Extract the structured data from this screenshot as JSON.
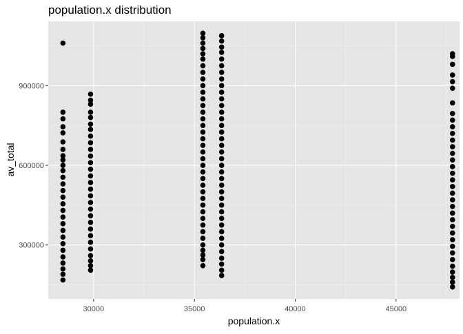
{
  "chart_data": {
    "type": "scatter",
    "title": "population.x  distribution",
    "xlabel": "population.x",
    "ylabel": "av_total",
    "xlim": [
      27750,
      48150
    ],
    "ylim": [
      97000,
      1142000
    ],
    "x_ticks": [
      30000,
      35000,
      40000,
      45000
    ],
    "x_tick_labels": [
      "30000",
      "35000",
      "40000",
      "45000"
    ],
    "y_ticks": [
      300000,
      600000,
      900000
    ],
    "y_tick_labels": [
      "300000",
      "600000",
      "900000"
    ],
    "grid": true,
    "legend": "none",
    "series": [
      {
        "points": [
          [
            28480,
            1060000
          ],
          [
            28480,
            800000
          ],
          [
            28480,
            775000
          ],
          [
            28480,
            745000
          ],
          [
            28480,
            722000
          ],
          [
            28480,
            688000
          ],
          [
            28480,
            660000
          ],
          [
            28480,
            636000
          ],
          [
            28480,
            620000
          ],
          [
            28480,
            600000
          ],
          [
            28480,
            580000
          ],
          [
            28480,
            555000
          ],
          [
            28480,
            530000
          ],
          [
            28480,
            505000
          ],
          [
            28480,
            480000
          ],
          [
            28480,
            455000
          ],
          [
            28480,
            430000
          ],
          [
            28480,
            405000
          ],
          [
            28480,
            380000
          ],
          [
            28480,
            355000
          ],
          [
            28480,
            330000
          ],
          [
            28480,
            305000
          ],
          [
            28480,
            280000
          ],
          [
            28480,
            255000
          ],
          [
            28480,
            232000
          ],
          [
            28480,
            210000
          ],
          [
            28480,
            190000
          ],
          [
            28480,
            168000
          ],
          [
            29850,
            868000
          ],
          [
            29850,
            845000
          ],
          [
            29850,
            830000
          ],
          [
            29850,
            800000
          ],
          [
            29850,
            780000
          ],
          [
            29850,
            755000
          ],
          [
            29850,
            735000
          ],
          [
            29850,
            710000
          ],
          [
            29850,
            685000
          ],
          [
            29850,
            660000
          ],
          [
            29850,
            635000
          ],
          [
            29850,
            610000
          ],
          [
            29850,
            585000
          ],
          [
            29850,
            560000
          ],
          [
            29850,
            535000
          ],
          [
            29850,
            510000
          ],
          [
            29850,
            485000
          ],
          [
            29850,
            460000
          ],
          [
            29850,
            435000
          ],
          [
            29850,
            410000
          ],
          [
            29850,
            385000
          ],
          [
            29850,
            360000
          ],
          [
            29850,
            335000
          ],
          [
            29850,
            310000
          ],
          [
            29850,
            285000
          ],
          [
            29850,
            260000
          ],
          [
            29850,
            240000
          ],
          [
            29850,
            222000
          ],
          [
            29850,
            205000
          ],
          [
            35420,
            1097000
          ],
          [
            35420,
            1080000
          ],
          [
            35420,
            1060000
          ],
          [
            35420,
            1040000
          ],
          [
            35420,
            1020000
          ],
          [
            35420,
            1000000
          ],
          [
            35420,
            975000
          ],
          [
            35420,
            950000
          ],
          [
            35420,
            925000
          ],
          [
            35420,
            900000
          ],
          [
            35420,
            875000
          ],
          [
            35420,
            850000
          ],
          [
            35420,
            825000
          ],
          [
            35420,
            800000
          ],
          [
            35420,
            775000
          ],
          [
            35420,
            750000
          ],
          [
            35420,
            725000
          ],
          [
            35420,
            700000
          ],
          [
            35420,
            675000
          ],
          [
            35420,
            650000
          ],
          [
            35420,
            625000
          ],
          [
            35420,
            600000
          ],
          [
            35420,
            575000
          ],
          [
            35420,
            550000
          ],
          [
            35420,
            525000
          ],
          [
            35420,
            500000
          ],
          [
            35420,
            475000
          ],
          [
            35420,
            450000
          ],
          [
            35420,
            425000
          ],
          [
            35420,
            400000
          ],
          [
            35420,
            375000
          ],
          [
            35420,
            350000
          ],
          [
            35420,
            325000
          ],
          [
            35420,
            300000
          ],
          [
            35420,
            280000
          ],
          [
            35420,
            262000
          ],
          [
            35420,
            245000
          ],
          [
            35420,
            222000
          ],
          [
            36350,
            1088000
          ],
          [
            36350,
            1068000
          ],
          [
            36350,
            1045000
          ],
          [
            36350,
            1025000
          ],
          [
            36350,
            1000000
          ],
          [
            36350,
            975000
          ],
          [
            36350,
            950000
          ],
          [
            36350,
            925000
          ],
          [
            36350,
            900000
          ],
          [
            36350,
            875000
          ],
          [
            36350,
            850000
          ],
          [
            36350,
            825000
          ],
          [
            36350,
            800000
          ],
          [
            36350,
            775000
          ],
          [
            36350,
            750000
          ],
          [
            36350,
            725000
          ],
          [
            36350,
            700000
          ],
          [
            36350,
            675000
          ],
          [
            36350,
            650000
          ],
          [
            36350,
            625000
          ],
          [
            36350,
            600000
          ],
          [
            36350,
            575000
          ],
          [
            36350,
            550000
          ],
          [
            36350,
            525000
          ],
          [
            36350,
            500000
          ],
          [
            36350,
            475000
          ],
          [
            36350,
            450000
          ],
          [
            36350,
            425000
          ],
          [
            36350,
            400000
          ],
          [
            36350,
            375000
          ],
          [
            36350,
            350000
          ],
          [
            36350,
            325000
          ],
          [
            36350,
            300000
          ],
          [
            36350,
            275000
          ],
          [
            36350,
            250000
          ],
          [
            36350,
            228000
          ],
          [
            36350,
            205000
          ],
          [
            36350,
            185000
          ],
          [
            47800,
            1020000
          ],
          [
            47800,
            1010000
          ],
          [
            47800,
            980000
          ],
          [
            47800,
            940000
          ],
          [
            47800,
            915000
          ],
          [
            47800,
            890000
          ],
          [
            47800,
            835000
          ],
          [
            47800,
            795000
          ],
          [
            47800,
            770000
          ],
          [
            47800,
            745000
          ],
          [
            47800,
            720000
          ],
          [
            47800,
            695000
          ],
          [
            47800,
            670000
          ],
          [
            47800,
            645000
          ],
          [
            47800,
            620000
          ],
          [
            47800,
            595000
          ],
          [
            47800,
            570000
          ],
          [
            47800,
            545000
          ],
          [
            47800,
            520000
          ],
          [
            47800,
            495000
          ],
          [
            47800,
            470000
          ],
          [
            47800,
            445000
          ],
          [
            47800,
            420000
          ],
          [
            47800,
            395000
          ],
          [
            47800,
            370000
          ],
          [
            47800,
            345000
          ],
          [
            47800,
            320000
          ],
          [
            47800,
            295000
          ],
          [
            47800,
            270000
          ],
          [
            47800,
            245000
          ],
          [
            47800,
            220000
          ],
          [
            47800,
            198000
          ],
          [
            47800,
            178000
          ],
          [
            47800,
            160000
          ],
          [
            47800,
            142000
          ]
        ]
      }
    ]
  },
  "colors": {
    "panel_background": "#e5e5e5",
    "grid_major": "#ffffff",
    "grid_minor": "#f2f2f2",
    "point": "#000000",
    "title": "#000000",
    "axis_text": "#4d4d4d",
    "tick": "#333333"
  }
}
